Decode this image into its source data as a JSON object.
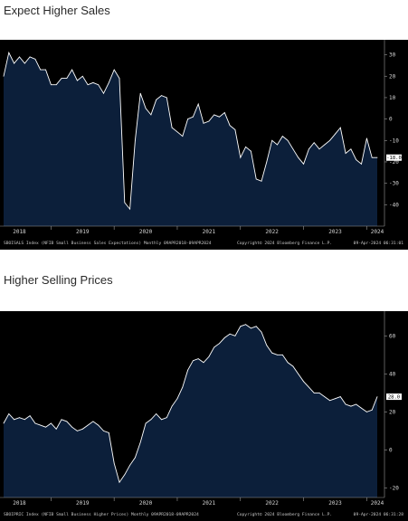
{
  "charts": [
    {
      "title": "Expect Higher Sales",
      "footer_left": "SBOISALS Index (NFIB Small Business Sales Expectations)  Monthly 09APR2018-09APR2024",
      "footer_mid": "Copyright© 2024 Bloomberg Finance L.P.",
      "footer_right": "09-Apr-2024 06:31:01",
      "last_value_label": "-18.0"
    },
    {
      "title": "Higher Selling Prices",
      "footer_left": "SBOIPRIC Index (NFIB Small Business Higher Prices)  Monthly 09APR2018-09APR2024",
      "footer_mid": "Copyright© 2024 Bloomberg Finance L.P.",
      "footer_right": "09-Apr-2024 06:31:28",
      "last_value_label": "28.0"
    }
  ],
  "colors": {
    "background": "#000000",
    "area_fill": "#0c1f3a",
    "line": "#ffffff",
    "text": "#d8d8d8"
  },
  "chart_data": [
    {
      "type": "area",
      "title": "Expect Higher Sales",
      "x_ticks": [
        "2018",
        "2019",
        "2020",
        "2021",
        "2022",
        "2023",
        "2024"
      ],
      "y_ticks": [
        30,
        20,
        10,
        0,
        -10,
        -20,
        -30,
        -40
      ],
      "ylim": [
        -50,
        37
      ],
      "x_range": [
        "2018-04",
        "2024-03"
      ],
      "last_value": -18.0,
      "series": [
        {
          "x": [
            "2018-04",
            "2018-05",
            "2018-06",
            "2018-07",
            "2018-08",
            "2018-09",
            "2018-10",
            "2018-11",
            "2018-12",
            "2019-01",
            "2019-02",
            "2019-03",
            "2019-04",
            "2019-05",
            "2019-06",
            "2019-07",
            "2019-08",
            "2019-09",
            "2019-10",
            "2019-11",
            "2019-12",
            "2020-01",
            "2020-02",
            "2020-03",
            "2020-04",
            "2020-05",
            "2020-06",
            "2020-07",
            "2020-08",
            "2020-09",
            "2020-10",
            "2020-11",
            "2020-12",
            "2021-01",
            "2021-02",
            "2021-03",
            "2021-04",
            "2021-05",
            "2021-06",
            "2021-07",
            "2021-08",
            "2021-09",
            "2021-10",
            "2021-11",
            "2021-12",
            "2022-01",
            "2022-02",
            "2022-03",
            "2022-04",
            "2022-05",
            "2022-06",
            "2022-07",
            "2022-08",
            "2022-09",
            "2022-10",
            "2022-11",
            "2022-12",
            "2023-01",
            "2023-02",
            "2023-03",
            "2023-04",
            "2023-05",
            "2023-06",
            "2023-07",
            "2023-08",
            "2023-09",
            "2023-10",
            "2023-11",
            "2023-12",
            "2024-01",
            "2024-02",
            "2024-03"
          ],
          "values": [
            20,
            31,
            26,
            29,
            26,
            29,
            28,
            23,
            23,
            16,
            16,
            19,
            19,
            23,
            18,
            20,
            16,
            17,
            16,
            12,
            17,
            23,
            19,
            -39,
            -42,
            -10,
            12,
            5,
            2,
            9,
            11,
            10,
            -4,
            -6,
            -8,
            0,
            1,
            7,
            -2,
            -1,
            2,
            1,
            3,
            -3,
            -5,
            -18,
            -13,
            -15,
            -28,
            -29,
            -20,
            -10,
            -12,
            -8,
            -10,
            -14,
            -18,
            -21,
            -14,
            -11,
            -14,
            -12,
            -10,
            -7,
            -4,
            -16,
            -14,
            -19,
            -21,
            -9,
            -18,
            -18
          ]
        }
      ]
    },
    {
      "type": "area",
      "title": "Higher Selling Prices",
      "x_ticks": [
        "2018",
        "2019",
        "2020",
        "2021",
        "2022",
        "2023",
        "2024"
      ],
      "y_ticks": [
        60,
        40,
        20,
        0,
        -20
      ],
      "ylim": [
        -25,
        73
      ],
      "x_range": [
        "2018-04",
        "2024-03"
      ],
      "last_value": 28.0,
      "series": [
        {
          "x": [
            "2018-04",
            "2018-05",
            "2018-06",
            "2018-07",
            "2018-08",
            "2018-09",
            "2018-10",
            "2018-11",
            "2018-12",
            "2019-01",
            "2019-02",
            "2019-03",
            "2019-04",
            "2019-05",
            "2019-06",
            "2019-07",
            "2019-08",
            "2019-09",
            "2019-10",
            "2019-11",
            "2019-12",
            "2020-01",
            "2020-02",
            "2020-03",
            "2020-04",
            "2020-05",
            "2020-06",
            "2020-07",
            "2020-08",
            "2020-09",
            "2020-10",
            "2020-11",
            "2020-12",
            "2021-01",
            "2021-02",
            "2021-03",
            "2021-04",
            "2021-05",
            "2021-06",
            "2021-07",
            "2021-08",
            "2021-09",
            "2021-10",
            "2021-11",
            "2021-12",
            "2022-01",
            "2022-02",
            "2022-03",
            "2022-04",
            "2022-05",
            "2022-06",
            "2022-07",
            "2022-08",
            "2022-09",
            "2022-10",
            "2022-11",
            "2022-12",
            "2023-01",
            "2023-02",
            "2023-03",
            "2023-04",
            "2023-05",
            "2023-06",
            "2023-07",
            "2023-08",
            "2023-09",
            "2023-10",
            "2023-11",
            "2023-12",
            "2024-01",
            "2024-02",
            "2024-03"
          ],
          "values": [
            14,
            19,
            16,
            17,
            16,
            18,
            14,
            13,
            12,
            14,
            11,
            16,
            15,
            12,
            10,
            11,
            13,
            15,
            13,
            10,
            9,
            -7,
            -17,
            -13,
            -8,
            -4,
            4,
            14,
            16,
            19,
            16,
            17,
            23,
            27,
            33,
            42,
            47,
            48,
            46,
            49,
            54,
            56,
            59,
            61,
            60,
            65,
            66,
            64,
            65,
            62,
            55,
            51,
            50,
            50,
            46,
            44,
            40,
            36,
            33,
            30,
            30,
            28,
            26,
            27,
            28,
            24,
            23,
            24,
            22,
            20,
            21,
            28
          ]
        }
      ]
    }
  ]
}
